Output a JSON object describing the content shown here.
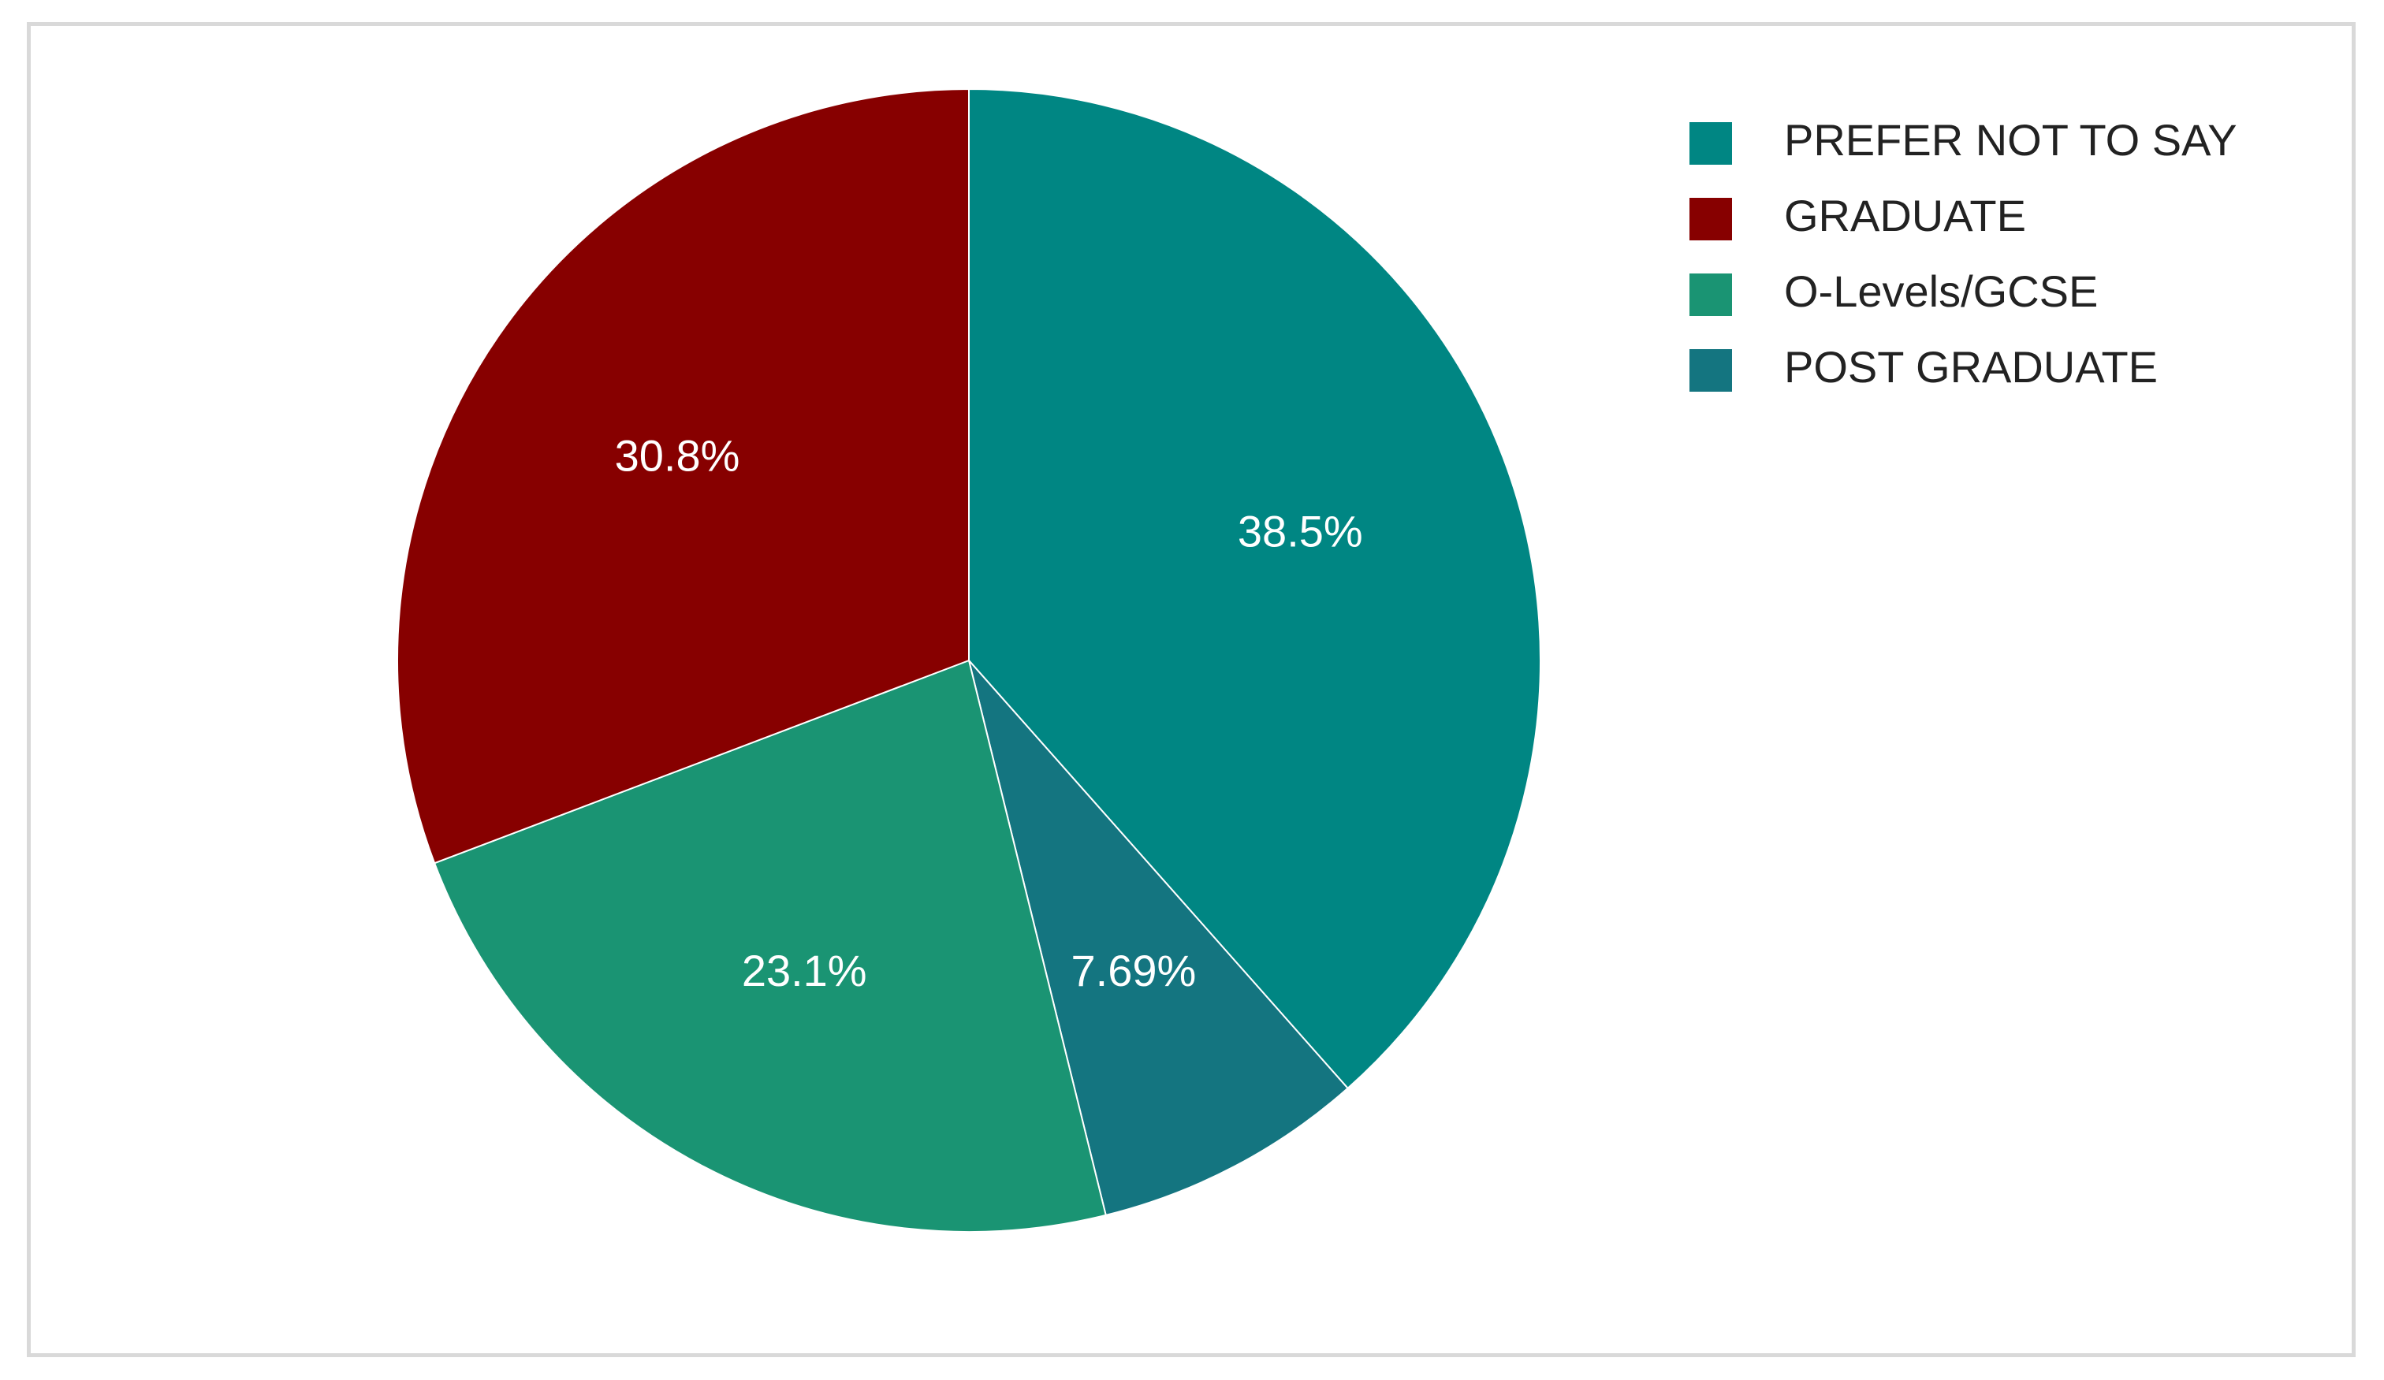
{
  "chart_data": {
    "type": "pie",
    "title": "",
    "legend_position": "top-right",
    "categories": [
      "PREFER NOT TO SAY",
      "GRADUATE",
      "O-Levels/GCSE",
      "POST GRADUATE"
    ],
    "slices": [
      {
        "label": "PREFER NOT TO SAY",
        "value": 38.5,
        "display": "38.5%",
        "color": "#008683"
      },
      {
        "label": "POST GRADUATE",
        "value": 7.69,
        "display": "7.69%",
        "color": "#147580"
      },
      {
        "label": "O-Levels/GCSE",
        "value": 23.1,
        "display": "23.1%",
        "color": "#1a9473"
      },
      {
        "label": "GRADUATE",
        "value": 30.8,
        "display": "30.8%",
        "color": "#870000"
      }
    ],
    "legend": [
      {
        "label": "PREFER NOT TO SAY",
        "color": "#008683"
      },
      {
        "label": "GRADUATE",
        "color": "#870000"
      },
      {
        "label": "O-Levels/GCSE",
        "color": "#1a9473"
      },
      {
        "label": "POST GRADUATE",
        "color": "#147580"
      }
    ]
  }
}
